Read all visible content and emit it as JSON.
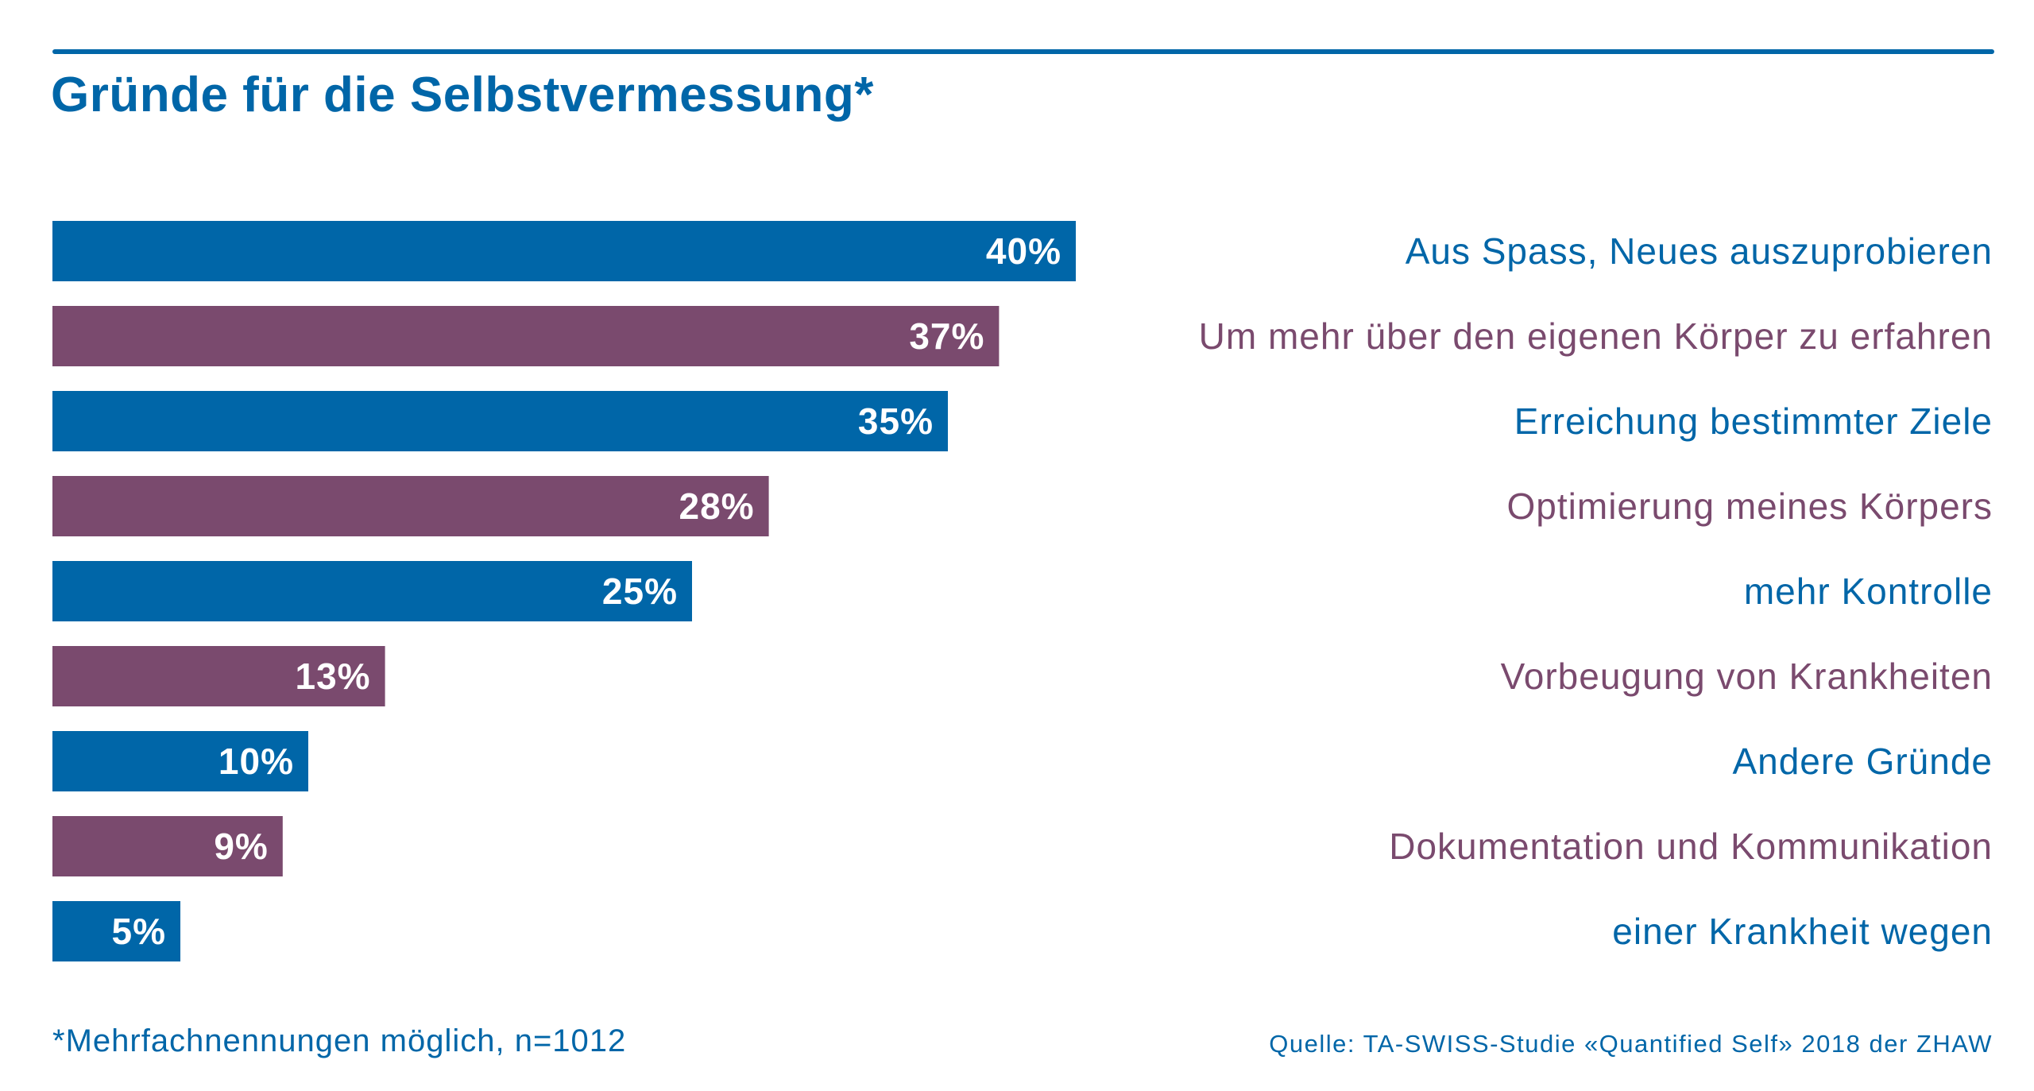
{
  "title": "Gründe für die Selbstvermessung*",
  "footnote": "*Mehrfachnennungen möglich, n=1012",
  "source": "Quelle: TA-SWISS-Studie «Quantified Self» 2018 der ZHAW",
  "colors": {
    "blue": "#0066a8",
    "purple": "#7a4a6e"
  },
  "chart_data": {
    "type": "bar",
    "orientation": "horizontal",
    "categories": [
      "Aus Spass, Neues auszuprobieren",
      "Um mehr über den eigenen Körper zu erfahren",
      "Erreichung bestimmter Ziele",
      "Optimierung meines Körpers",
      "mehr Kontrolle",
      "Vorbeugung von Krankheiten",
      "Andere Gründe",
      "Dokumentation und Kommunikation",
      "einer Krankheit wegen"
    ],
    "values": [
      40,
      37,
      35,
      28,
      25,
      13,
      10,
      9,
      5
    ],
    "value_labels": [
      "40%",
      "37%",
      "35%",
      "28%",
      "25%",
      "13%",
      "10%",
      "9%",
      "5%"
    ],
    "unit": "%",
    "bar_colors": [
      "blue",
      "purple",
      "blue",
      "purple",
      "blue",
      "purple",
      "blue",
      "purple",
      "blue"
    ],
    "xlim": [
      0,
      40
    ],
    "grid": false,
    "legend": "none"
  }
}
